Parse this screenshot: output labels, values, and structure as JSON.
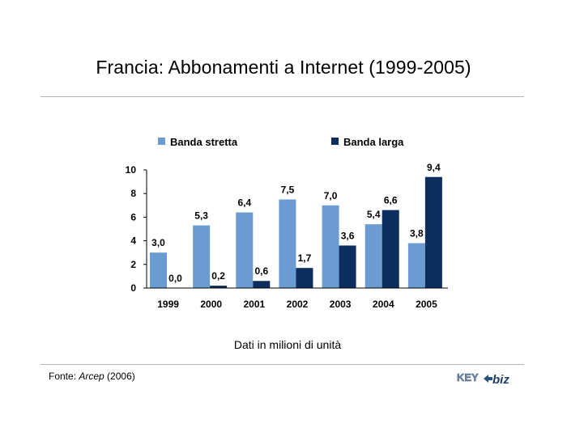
{
  "title": "Francia: Abbonamenti a Internet (1999-2005)",
  "caption": "Dati in milioni di unità",
  "source": {
    "prefix": "Fonte: ",
    "name": "Arcep",
    "suffix": " (2006)"
  },
  "logo": {
    "text_left": "KEY",
    "text_right": "biz"
  },
  "colors": {
    "series1": "#6a9bd1",
    "series2": "#0b2e5e",
    "axis": "#000000"
  },
  "chart_data": {
    "type": "bar",
    "categories": [
      "1999",
      "2000",
      "2001",
      "2002",
      "2003",
      "2004",
      "2005"
    ],
    "series": [
      {
        "name": "Banda stretta",
        "values": [
          3.0,
          5.3,
          6.4,
          7.5,
          7.0,
          5.4,
          3.8
        ],
        "labels": [
          "3,0",
          "5,3",
          "6,4",
          "7,5",
          "7,0",
          "5,4",
          "3,8"
        ]
      },
      {
        "name": "Banda larga",
        "values": [
          0.0,
          0.2,
          0.6,
          1.7,
          3.6,
          6.6,
          9.4
        ],
        "labels": [
          "0,0",
          "0,2",
          "0,6",
          "1,7",
          "3,6",
          "6,6",
          "9,4"
        ]
      }
    ],
    "ylim": [
      0,
      10
    ],
    "yticks": [
      0,
      2,
      4,
      6,
      8,
      10
    ],
    "legend": "top",
    "grid": false
  }
}
